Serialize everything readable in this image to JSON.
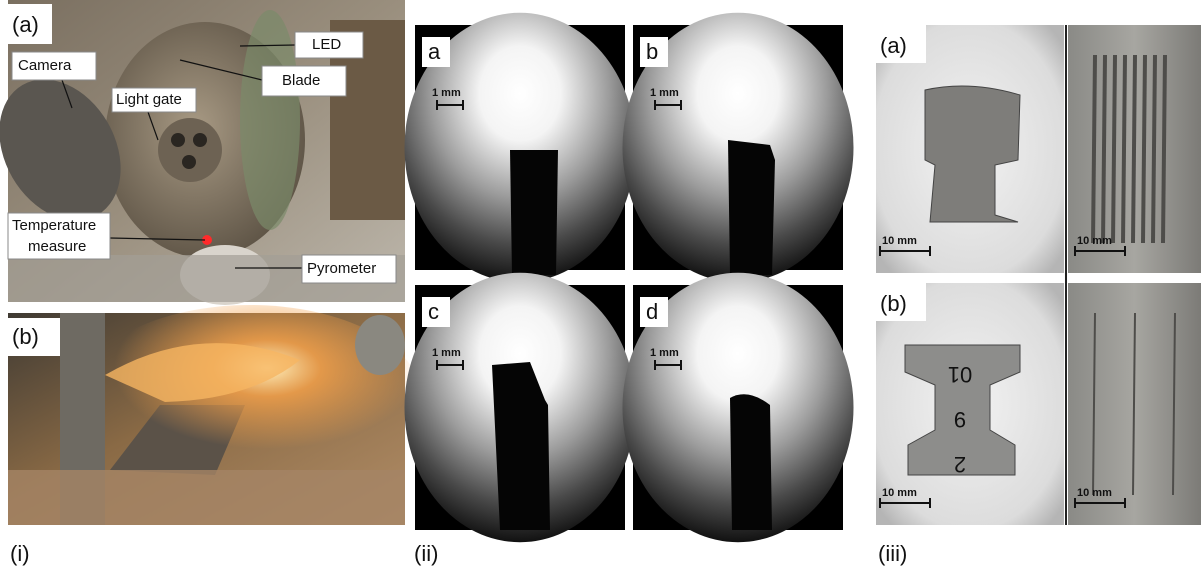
{
  "panel_i": {
    "label": "(i)",
    "photo_a": {
      "label": "(a)",
      "callouts": {
        "camera": "Camera",
        "light_gate": "Light gate",
        "led": "LED",
        "blade": "Blade",
        "temperature": [
          "Temperature",
          "measure"
        ],
        "pyrometer": "Pyrometer"
      }
    },
    "photo_b": {
      "label": "(b)"
    }
  },
  "panel_ii": {
    "label": "(ii)",
    "frames": [
      {
        "label": "a",
        "scale": "1 mm"
      },
      {
        "label": "b",
        "scale": "1 mm"
      },
      {
        "label": "c",
        "scale": "1 mm"
      },
      {
        "label": "d",
        "scale": "1 mm"
      }
    ]
  },
  "panel_iii": {
    "label": "(iii)",
    "rows": [
      {
        "label": "(a)",
        "scales": [
          "10 mm",
          "10 mm"
        ]
      },
      {
        "label": "(b)",
        "scales": [
          "10 mm",
          "10 mm"
        ],
        "specimen_marks": [
          "01",
          "9",
          "2"
        ]
      }
    ]
  }
}
